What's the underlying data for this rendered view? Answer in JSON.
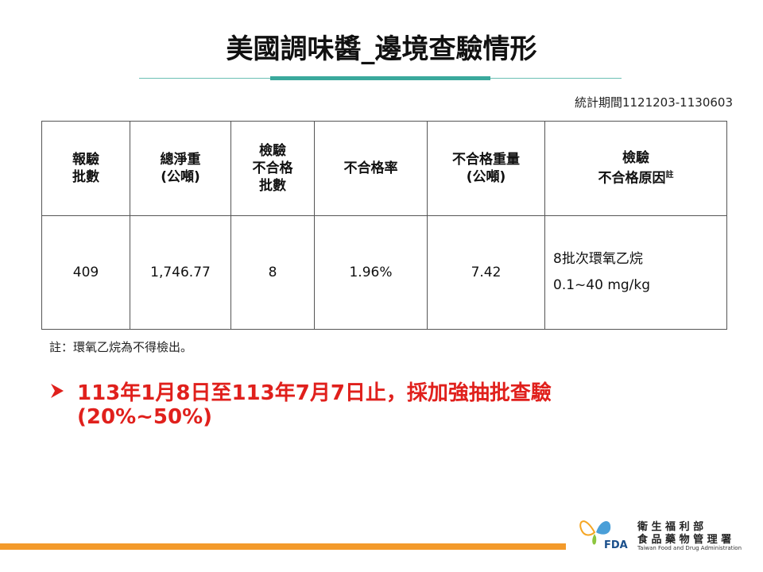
{
  "header": {
    "title": "美國調味醬_邊境查驗情形",
    "period": "統計期間1121203-1130603"
  },
  "table": {
    "headers": [
      [
        "報驗",
        "批數"
      ],
      [
        "總淨重",
        "(公噸)"
      ],
      [
        "檢驗",
        "不合格",
        "批數"
      ],
      [
        "不合格率"
      ],
      [
        "不合格重量",
        "(公噸)"
      ],
      [
        "檢驗",
        "不合格原因"
      ]
    ],
    "header_sup": "註",
    "rows": [
      [
        "409",
        "1,746.77",
        "8",
        "1.96%",
        "7.42",
        [
          "8批次環氧乙烷",
          "0.1~40 mg/kg"
        ]
      ]
    ]
  },
  "note": "註：環氧乙烷為不得檢出。",
  "highlight": [
    "113年1月8日至113年7月7日止，採加強抽批查驗",
    "(20%~50%)"
  ],
  "logo": {
    "mark": "FDA",
    "line1": "衛 生 福 利 部",
    "line2": "食 品 藥 物 管 理 署",
    "english": "Taiwan Food and Drug Administration"
  }
}
